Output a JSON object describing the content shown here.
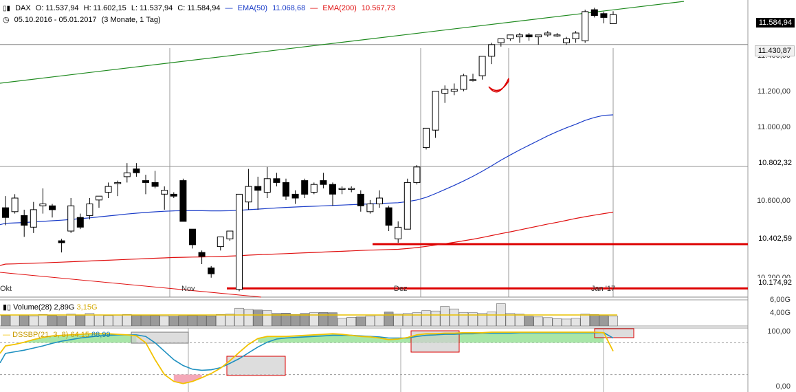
{
  "header": {
    "symbol": "DAX",
    "open": "O: 11.537,94",
    "high": "H: 11.602,15",
    "low": "L: 11.537,94",
    "close": "C: 11.584,94",
    "ema50_label": "EMA(50)",
    "ema50_value": "11.068,68",
    "ema200_label": "EMA(200)",
    "ema200_value": "10.567,73",
    "range": "05.10.2016 - 05.01.2017",
    "period": "(3 Monate, 1 Tag)"
  },
  "colors": {
    "ema50": "#1a3cc8",
    "ema200": "#e01010",
    "trend": "#1f8a1f",
    "support": "#dd0000",
    "dss": "#f2c200",
    "dss_signal": "#1e90c0",
    "volume_avg": "#e8c000"
  },
  "price_tags": {
    "last": "11.584,94",
    "level1": "11.430,87",
    "level2": "10.802,32",
    "level3": "10.402,59",
    "level4": "10.174,92"
  },
  "y_ticks": [
    "11.400,00",
    "11.200,00",
    "11.000,00",
    "10.600,00",
    "10.200,00"
  ],
  "x_ticks": [
    "Okt",
    "Nov",
    "Dez",
    "Jan '17"
  ],
  "volume": {
    "label": "Volume(28)",
    "value": "2,89G",
    "avg_value": "3,15G",
    "ticks": [
      "6,00G",
      "4,00G"
    ]
  },
  "dss": {
    "label": "DSSBP(21, 3, 8)",
    "value1": "64,15",
    "value2": "88,99",
    "ticks": [
      "100,00",
      "0,00"
    ]
  },
  "chart_data": {
    "type": "candlestick",
    "instrument": "DAX",
    "y_axis": {
      "min": 10130,
      "max": 11660,
      "tick_values": [
        11400,
        11200,
        11000,
        10600,
        10200
      ]
    },
    "candles": [
      {
        "o": 10590,
        "h": 10650,
        "l": 10500,
        "c": 10540
      },
      {
        "o": 10570,
        "h": 10660,
        "l": 10560,
        "c": 10640
      },
      {
        "o": 10550,
        "h": 10580,
        "l": 10440,
        "c": 10500
      },
      {
        "o": 10490,
        "h": 10620,
        "l": 10460,
        "c": 10580
      },
      {
        "o": 10600,
        "h": 10690,
        "l": 10560,
        "c": 10610
      },
      {
        "o": 10600,
        "h": 10610,
        "l": 10540,
        "c": 10580
      },
      {
        "o": 10420,
        "h": 10430,
        "l": 10360,
        "c": 10410
      },
      {
        "o": 10470,
        "h": 10640,
        "l": 10460,
        "c": 10600
      },
      {
        "o": 10540,
        "h": 10560,
        "l": 10480,
        "c": 10490
      },
      {
        "o": 10550,
        "h": 10640,
        "l": 10530,
        "c": 10610
      },
      {
        "o": 10630,
        "h": 10650,
        "l": 10590,
        "c": 10650
      },
      {
        "o": 10670,
        "h": 10720,
        "l": 10640,
        "c": 10700
      },
      {
        "o": 10720,
        "h": 10730,
        "l": 10650,
        "c": 10720
      },
      {
        "o": 10750,
        "h": 10820,
        "l": 10720,
        "c": 10770
      },
      {
        "o": 10790,
        "h": 10820,
        "l": 10750,
        "c": 10770
      },
      {
        "o": 10730,
        "h": 10760,
        "l": 10660,
        "c": 10720
      },
      {
        "o": 10720,
        "h": 10780,
        "l": 10690,
        "c": 10700
      },
      {
        "o": 10660,
        "h": 10700,
        "l": 10580,
        "c": 10680
      },
      {
        "o": 10660,
        "h": 10670,
        "l": 10640,
        "c": 10650
      },
      {
        "o": 10730,
        "h": 10740,
        "l": 10520,
        "c": 10520
      },
      {
        "o": 10480,
        "h": 10480,
        "l": 10380,
        "c": 10400
      },
      {
        "o": 10360,
        "h": 10370,
        "l": 10300,
        "c": 10340
      },
      {
        "o": 10280,
        "h": 10290,
        "l": 10230,
        "c": 10250
      },
      {
        "o": 10390,
        "h": 10440,
        "l": 10370,
        "c": 10440
      },
      {
        "o": 10430,
        "h": 10470,
        "l": 10420,
        "c": 10470
      },
      {
        "o": 10170,
        "h": 10660,
        "l": 10160,
        "c": 10660
      },
      {
        "o": 10620,
        "h": 10790,
        "l": 10580,
        "c": 10700
      },
      {
        "o": 10700,
        "h": 10750,
        "l": 10580,
        "c": 10680
      },
      {
        "o": 10670,
        "h": 10800,
        "l": 10640,
        "c": 10740
      },
      {
        "o": 10740,
        "h": 10770,
        "l": 10700,
        "c": 10720
      },
      {
        "o": 10720,
        "h": 10740,
        "l": 10630,
        "c": 10650
      },
      {
        "o": 10660,
        "h": 10680,
        "l": 10610,
        "c": 10640
      },
      {
        "o": 10730,
        "h": 10740,
        "l": 10640,
        "c": 10660
      },
      {
        "o": 10670,
        "h": 10720,
        "l": 10660,
        "c": 10710
      },
      {
        "o": 10730,
        "h": 10770,
        "l": 10690,
        "c": 10710
      },
      {
        "o": 10710,
        "h": 10720,
        "l": 10600,
        "c": 10660
      },
      {
        "o": 10690,
        "h": 10700,
        "l": 10660,
        "c": 10690
      },
      {
        "o": 10690,
        "h": 10700,
        "l": 10670,
        "c": 10690
      },
      {
        "o": 10660,
        "h": 10680,
        "l": 10570,
        "c": 10600
      },
      {
        "o": 10570,
        "h": 10630,
        "l": 10560,
        "c": 10610
      },
      {
        "o": 10610,
        "h": 10680,
        "l": 10590,
        "c": 10640
      },
      {
        "o": 10590,
        "h": 10600,
        "l": 10470,
        "c": 10500
      },
      {
        "o": 10430,
        "h": 10520,
        "l": 10410,
        "c": 10490
      },
      {
        "o": 10480,
        "h": 10740,
        "l": 10480,
        "c": 10720
      },
      {
        "o": 10720,
        "h": 10810,
        "l": 10710,
        "c": 10800
      },
      {
        "o": 10900,
        "h": 11000,
        "l": 10890,
        "c": 11000
      },
      {
        "o": 10990,
        "h": 11190,
        "l": 10950,
        "c": 11190
      },
      {
        "o": 11180,
        "h": 11220,
        "l": 11130,
        "c": 11200
      },
      {
        "o": 11190,
        "h": 11230,
        "l": 11170,
        "c": 11200
      },
      {
        "o": 11200,
        "h": 11280,
        "l": 11190,
        "c": 11270
      },
      {
        "o": 11250,
        "h": 11280,
        "l": 11240,
        "c": 11250
      },
      {
        "o": 11270,
        "h": 11370,
        "l": 11250,
        "c": 11370
      },
      {
        "o": 11370,
        "h": 11440,
        "l": 11330,
        "c": 11430
      },
      {
        "o": 11440,
        "h": 11460,
        "l": 11420,
        "c": 11460
      },
      {
        "o": 11460,
        "h": 11480,
        "l": 11450,
        "c": 11480
      },
      {
        "o": 11470,
        "h": 11490,
        "l": 11440,
        "c": 11480
      },
      {
        "o": 11480,
        "h": 11490,
        "l": 11450,
        "c": 11470
      },
      {
        "o": 11470,
        "h": 11480,
        "l": 11430,
        "c": 11480
      },
      {
        "o": 11480,
        "h": 11500,
        "l": 11470,
        "c": 11490
      },
      {
        "o": 11480,
        "h": 11490,
        "l": 11470,
        "c": 11480
      },
      {
        "o": 11440,
        "h": 11470,
        "l": 11430,
        "c": 11460
      },
      {
        "o": 11460,
        "h": 11500,
        "l": 11440,
        "c": 11490
      },
      {
        "o": 11450,
        "h": 11610,
        "l": 11440,
        "c": 11600
      },
      {
        "o": 11610,
        "h": 11620,
        "l": 11570,
        "c": 11580
      },
      {
        "o": 11590,
        "h": 11600,
        "l": 11540,
        "c": 11570
      },
      {
        "o": 11537.94,
        "h": 11602.15,
        "l": 11537.94,
        "c": 11584.94
      }
    ],
    "ema50": [
      10510,
      10512,
      10514,
      10517,
      10520,
      10523,
      10526,
      10530,
      10534,
      10538,
      10543,
      10548,
      10553,
      10558,
      10562,
      10566,
      10569,
      10572,
      10574,
      10575,
      10575,
      10575,
      10574,
      10574,
      10575,
      10577,
      10580,
      10583,
      10586,
      10589,
      10592,
      10594,
      10596,
      10598,
      10600,
      10602,
      10604,
      10606,
      10608,
      10610,
      10612,
      10614,
      10616,
      10622,
      10630,
      10644,
      10663,
      10684,
      10705,
      10728,
      10752,
      10778,
      10806,
      10835,
      10862,
      10888,
      10912,
      10936,
      10960,
      10982,
      11002,
      11020,
      11040,
      11055,
      11066,
      11068.68
    ],
    "ema200": [
      10300,
      10301,
      10303,
      10305,
      10306,
      10308,
      10310,
      10312,
      10314,
      10316,
      10318,
      10320,
      10322,
      10324,
      10326,
      10328,
      10330,
      10332,
      10334,
      10335,
      10336,
      10337,
      10338,
      10339,
      10341,
      10343,
      10346,
      10348,
      10350,
      10352,
      10354,
      10356,
      10358,
      10360,
      10362,
      10364,
      10366,
      10368,
      10370,
      10372,
      10373,
      10375,
      10376,
      10380,
      10385,
      10391,
      10398,
      10405,
      10412,
      10420,
      10428,
      10437,
      10447,
      10457,
      10466,
      10476,
      10486,
      10496,
      10506,
      10515,
      10525,
      10535,
      10544,
      10552,
      10560,
      10567.73
    ],
    "horizontal_levels": [
      11430.87,
      10802.32,
      10402.59,
      10174.92
    ],
    "volume_values": [
      3.0,
      3.2,
      3.1,
      2.9,
      3.3,
      3.0,
      2.8,
      3.4,
      3.1,
      3.6,
      3.2,
      3.0,
      3.1,
      3.3,
      3.1,
      3.2,
      3.0,
      2.9,
      2.8,
      3.2,
      3.0,
      3.1,
      2.9,
      3.3,
      3.4,
      5.1,
      4.8,
      4.6,
      4.4,
      3.6,
      3.7,
      3.3,
      3.6,
      3.8,
      3.9,
      3.8,
      2.2,
      2.5,
      2.6,
      2.9,
      3.1,
      4.0,
      3.4,
      3.6,
      3.8,
      4.4,
      4.3,
      5.6,
      4.9,
      3.9,
      3.8,
      3.6,
      4.0,
      6.4,
      3.6,
      3.4,
      2.8,
      2.6,
      2.4,
      2.1,
      2.0,
      2.2,
      3.4,
      3.3,
      3.1,
      2.89
    ],
    "volume_avg": 3.15,
    "volume_axis": {
      "min": 0,
      "max": 7.5
    },
    "dss_values": [
      74,
      77,
      81,
      86,
      90,
      93,
      94,
      95,
      96,
      97,
      97,
      97,
      96,
      95,
      93,
      80,
      48,
      20,
      7,
      3,
      7,
      14,
      22,
      32,
      46,
      62,
      77,
      88,
      92,
      92,
      92,
      93,
      94,
      95,
      96,
      97,
      96,
      94,
      92,
      91,
      89,
      86,
      87,
      90,
      95,
      97,
      97,
      98,
      98,
      99,
      99,
      99,
      100,
      100,
      100,
      100,
      100,
      100,
      100,
      100,
      100,
      100,
      100,
      100,
      99,
      64.15
    ],
    "dss_signal_values": [
      60,
      63,
      66,
      70,
      74,
      79,
      83,
      86,
      89,
      91,
      93,
      94,
      95,
      95,
      95,
      92,
      80,
      64,
      48,
      37,
      30,
      28,
      29,
      33,
      41,
      50,
      61,
      72,
      81,
      87,
      89,
      90,
      91,
      92,
      93,
      94,
      94,
      94,
      93,
      92,
      91,
      89,
      89,
      89,
      92,
      94,
      95,
      96,
      96,
      97,
      97,
      98,
      98,
      98,
      98,
      99,
      99,
      99,
      99,
      99,
      99,
      99,
      99,
      99,
      99,
      88.99
    ],
    "dss_axis": {
      "min": 0,
      "max": 100,
      "reference_levels": [
        80,
        20
      ]
    }
  }
}
